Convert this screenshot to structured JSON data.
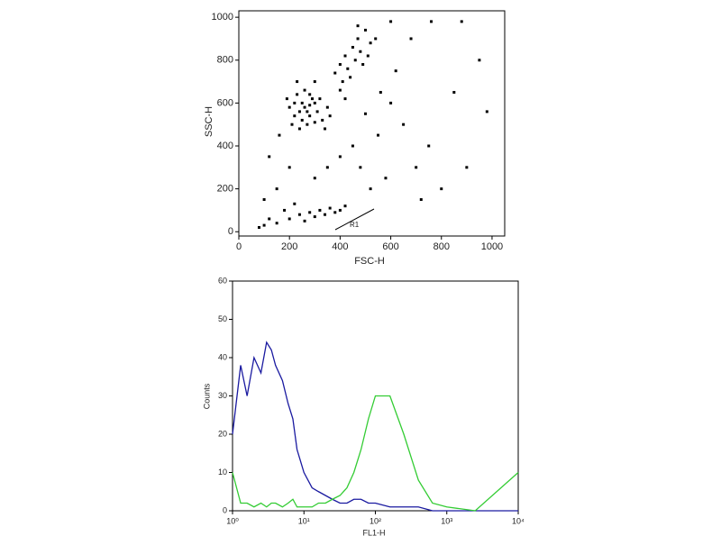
{
  "chart_data": [
    {
      "type": "scatter",
      "xlabel": "FSC-H",
      "ylabel": "SSC-H",
      "annotation": "R1",
      "color": "#000000",
      "xlim": [
        0,
        1050
      ],
      "ylim": [
        -20,
        1030
      ],
      "xticks": [
        0,
        200,
        400,
        600,
        800,
        1000
      ],
      "yticks": [
        0,
        200,
        400,
        600,
        800,
        1000
      ],
      "x": [
        220,
        240,
        260,
        280,
        300,
        250,
        230,
        270,
        310,
        290,
        200,
        330,
        260,
        240,
        280,
        300,
        220,
        320,
        250,
        270,
        350,
        190,
        210,
        340,
        280,
        230,
        300,
        360,
        400,
        420,
        450,
        470,
        500,
        430,
        460,
        480,
        520,
        410,
        440,
        490,
        380,
        510,
        540,
        470,
        400,
        420,
        200,
        240,
        280,
        320,
        360,
        300,
        340,
        380,
        260,
        150,
        100,
        80,
        120,
        400,
        420,
        180,
        220,
        600,
        650,
        700,
        750,
        800,
        850,
        900,
        950,
        620,
        680,
        720,
        580,
        520,
        480,
        150,
        120,
        100,
        160,
        350,
        400,
        450,
        550,
        880,
        760,
        980,
        600,
        300,
        200,
        500,
        560
      ],
      "values": [
        600,
        560,
        580,
        540,
        600,
        520,
        640,
        500,
        560,
        620,
        580,
        520,
        660,
        480,
        590,
        510,
        540,
        620,
        600,
        560,
        580,
        620,
        500,
        480,
        640,
        700,
        700,
        540,
        780,
        820,
        860,
        900,
        940,
        760,
        800,
        840,
        880,
        700,
        720,
        780,
        740,
        820,
        900,
        960,
        660,
        620,
        60,
        80,
        90,
        100,
        110,
        70,
        80,
        90,
        50,
        40,
        30,
        20,
        60,
        100,
        120,
        100,
        130,
        600,
        500,
        300,
        400,
        200,
        650,
        300,
        800,
        750,
        900,
        150,
        250,
        200,
        300,
        200,
        350,
        150,
        450,
        300,
        350,
        400,
        450,
        980,
        980,
        560,
        980,
        250,
        300,
        550,
        650
      ]
    },
    {
      "type": "line",
      "xlabel": "FL1-H",
      "ylabel": "Counts",
      "log_x": true,
      "xlim": [
        1,
        10000
      ],
      "ylim": [
        0,
        60
      ],
      "xticks": [
        {
          "value": 1,
          "label": "10⁰"
        },
        {
          "value": 10,
          "label": "10¹"
        },
        {
          "value": 100,
          "label": "10²"
        },
        {
          "value": 1000,
          "label": "10³"
        },
        {
          "value": 10000,
          "label": "10⁴"
        }
      ],
      "yticks": [
        0,
        10,
        20,
        30,
        40,
        50,
        60
      ],
      "x": [
        1,
        1.3,
        1.6,
        2,
        2.5,
        3,
        3.5,
        4,
        5,
        6,
        7,
        8,
        10,
        13,
        16,
        20,
        25,
        32,
        40,
        50,
        63,
        80,
        100,
        160,
        250,
        400,
        630,
        1000,
        2500,
        10000
      ],
      "series": [
        {
          "color": "#1a1aa0",
          "values": [
            20,
            38,
            30,
            40,
            36,
            44,
            42,
            38,
            34,
            28,
            24,
            16,
            10,
            6,
            5,
            4,
            3,
            2,
            2,
            3,
            3,
            2,
            2,
            1,
            1,
            1,
            0,
            0,
            0,
            0
          ]
        },
        {
          "color": "#33cc33",
          "values": [
            10,
            2,
            2,
            1,
            2,
            1,
            2,
            2,
            1,
            2,
            3,
            1,
            1,
            1,
            2,
            2,
            3,
            4,
            6,
            10,
            16,
            24,
            30,
            30,
            20,
            8,
            2,
            1,
            0,
            10
          ]
        }
      ]
    }
  ]
}
